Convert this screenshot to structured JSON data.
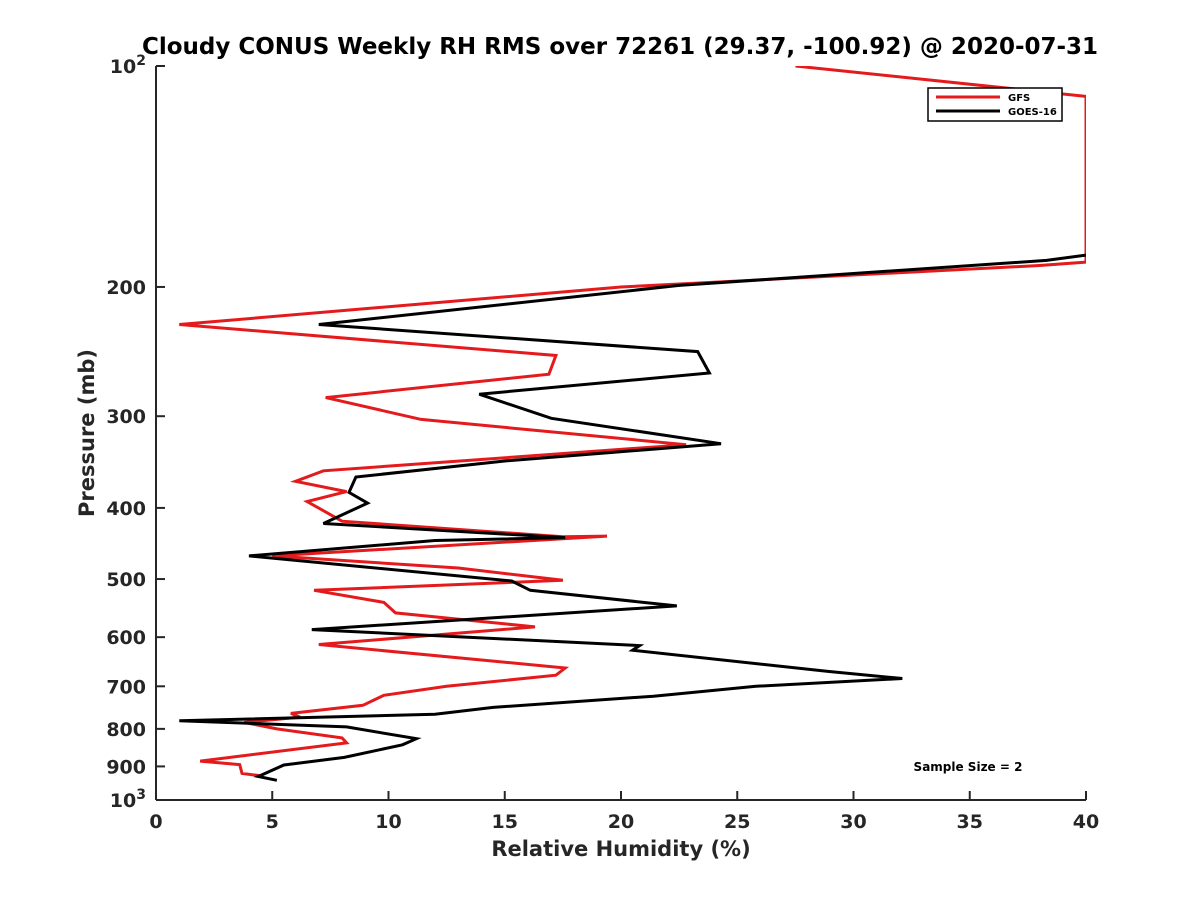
{
  "chart_data": {
    "type": "line",
    "title": "Cloudy CONUS Weekly RH RMS over 72261 (29.37, -100.92) @ 2020-07-31",
    "xlabel": "Relative Humidity (%)",
    "ylabel": "Pressure (mb)",
    "xlim": [
      0,
      40
    ],
    "ylim": [
      100,
      1000
    ],
    "y_scale": "log",
    "y_reversed": true,
    "x_ticks": [
      "0",
      "5",
      "10",
      "15",
      "20",
      "25",
      "30",
      "35",
      "40"
    ],
    "y_ticks": [
      {
        "value": 100,
        "base": "10",
        "exp": "2"
      },
      {
        "value": 200,
        "label": "200"
      },
      {
        "value": 300,
        "label": "300"
      },
      {
        "value": 400,
        "label": "400"
      },
      {
        "value": 500,
        "label": "500"
      },
      {
        "value": 600,
        "label": "600"
      },
      {
        "value": 700,
        "label": "700"
      },
      {
        "value": 800,
        "label": "800"
      },
      {
        "value": 900,
        "label": "900"
      },
      {
        "value": 1000,
        "base": "10",
        "exp": "3"
      }
    ],
    "legend_position": "top-right",
    "annotation": "Sample Size = 2",
    "series": [
      {
        "name": "GFS",
        "color": "#e41a1c",
        "points": [
          [
            27.5,
            100
          ],
          [
            40,
            110
          ],
          [
            40,
            185
          ],
          [
            38,
            187
          ],
          [
            20,
            200
          ],
          [
            1,
            225
          ],
          [
            17.2,
            248
          ],
          [
            16.9,
            263
          ],
          [
            7.3,
            283
          ],
          [
            11.4,
            303
          ],
          [
            22.8,
            328
          ],
          [
            7.2,
            356
          ],
          [
            6.0,
            368
          ],
          [
            8.2,
            380
          ],
          [
            6.5,
            392
          ],
          [
            8.0,
            417
          ],
          [
            17.5,
            438
          ],
          [
            19.4,
            437
          ],
          [
            5.0,
            465
          ],
          [
            13.0,
            483
          ],
          [
            17.5,
            502
          ],
          [
            6.8,
            518
          ],
          [
            9.8,
            538
          ],
          [
            10.3,
            556
          ],
          [
            16.3,
            581
          ],
          [
            7.0,
            614
          ],
          [
            17.6,
            661
          ],
          [
            17.2,
            676
          ],
          [
            12.5,
            700
          ],
          [
            9.8,
            720
          ],
          [
            8.9,
            743
          ],
          [
            5.8,
            762
          ],
          [
            6.2,
            771
          ],
          [
            3.8,
            784
          ],
          [
            5.2,
            800
          ],
          [
            8.0,
            823
          ],
          [
            8.2,
            836
          ],
          [
            1.9,
            885
          ],
          [
            3.6,
            895
          ],
          [
            3.7,
            920
          ],
          [
            4.5,
            927
          ]
        ]
      },
      {
        "name": "GOES-16",
        "color": "#000000",
        "points": [
          [
            40,
            181
          ],
          [
            38.3,
            184
          ],
          [
            22.5,
            199
          ],
          [
            7.0,
            225
          ],
          [
            23.3,
            245
          ],
          [
            23.8,
            262
          ],
          [
            13.9,
            280
          ],
          [
            17,
            302
          ],
          [
            24.3,
            327
          ],
          [
            15.1,
            345
          ],
          [
            8.6,
            363
          ],
          [
            8.3,
            381
          ],
          [
            9.1,
            394
          ],
          [
            7.2,
            420
          ],
          [
            17.6,
            439
          ],
          [
            12.0,
            443
          ],
          [
            4.0,
            465
          ],
          [
            15.3,
            503
          ],
          [
            16.1,
            518
          ],
          [
            22.4,
            544
          ],
          [
            6.7,
            586
          ],
          [
            20.8,
            616
          ],
          [
            20.5,
            625
          ],
          [
            28.9,
            668
          ],
          [
            32.1,
            683
          ],
          [
            25.8,
            700
          ],
          [
            21.4,
            722
          ],
          [
            14.5,
            748
          ],
          [
            12.0,
            764
          ],
          [
            1.0,
            780
          ],
          [
            8.2,
            795
          ],
          [
            11.2,
            825
          ],
          [
            10.6,
            841
          ],
          [
            8.1,
            875
          ],
          [
            5.5,
            896
          ],
          [
            4.4,
            929
          ],
          [
            5.2,
            940
          ]
        ]
      }
    ]
  }
}
